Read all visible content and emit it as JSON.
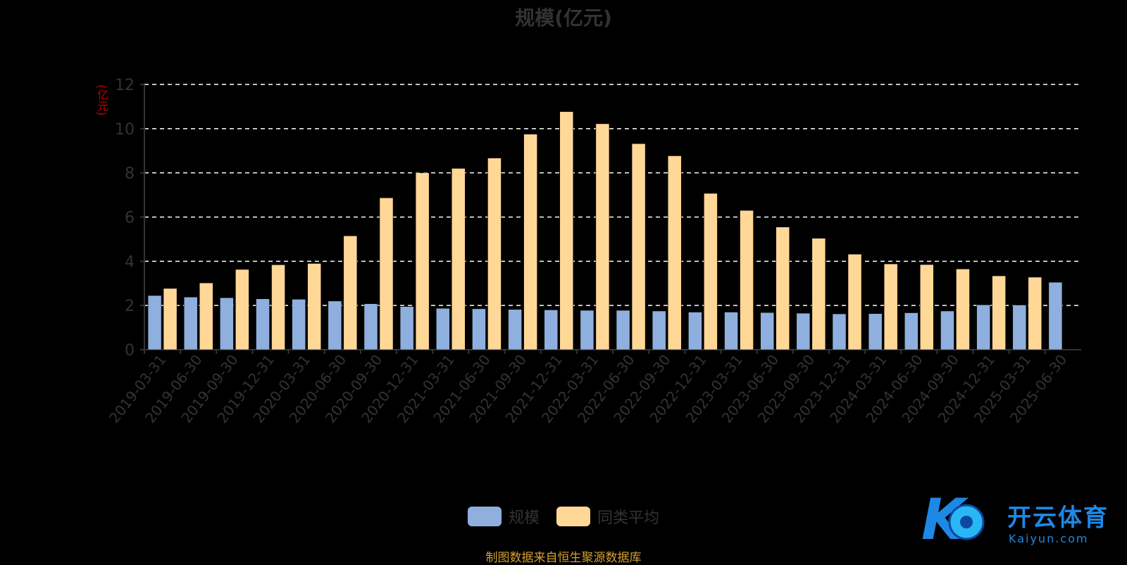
{
  "chart_data": {
    "type": "bar",
    "title": "规模(亿元)",
    "ylabel": "(亿元)",
    "ylim": [
      0,
      12
    ],
    "yticks": [
      0,
      2,
      4,
      6,
      8,
      10,
      12
    ],
    "grid": true,
    "legend_position": "bottom",
    "categories": [
      "2019-03-31",
      "2019-06-30",
      "2019-09-30",
      "2019-12-31",
      "2020-03-31",
      "2020-06-30",
      "2020-09-30",
      "2020-12-31",
      "2021-03-31",
      "2021-06-30",
      "2021-09-30",
      "2021-12-31",
      "2022-03-31",
      "2022-06-30",
      "2022-09-30",
      "2022-12-31",
      "2023-03-31",
      "2023-06-30",
      "2023-09-30",
      "2023-12-31",
      "2024-03-31",
      "2024-06-30",
      "2024-09-30",
      "2024-12-31",
      "2025-03-31",
      "2025-06-30"
    ],
    "series": [
      {
        "name": "规模",
        "color": "#8fb0de",
        "values": [
          2.45,
          2.38,
          2.35,
          2.3,
          2.28,
          2.2,
          2.08,
          1.95,
          1.87,
          1.85,
          1.82,
          1.8,
          1.78,
          1.78,
          1.75,
          1.7,
          1.7,
          1.68,
          1.65,
          1.62,
          1.63,
          1.67,
          1.75,
          2.03,
          2.02,
          3.05
        ]
      },
      {
        "name": "同类平均",
        "color": "#ffd898",
        "values": [
          2.77,
          3.02,
          3.63,
          3.84,
          3.9,
          5.15,
          6.87,
          8.0,
          8.2,
          8.67,
          9.75,
          10.77,
          10.22,
          9.32,
          8.77,
          7.07,
          6.3,
          5.55,
          5.04,
          4.32,
          3.88,
          3.85,
          3.65,
          3.34,
          3.28,
          null
        ]
      }
    ]
  },
  "footer": {
    "source": "制图数据来自恒生聚源数据库"
  },
  "watermark": {
    "brand": "开云体育",
    "site": "Kaiyun.com",
    "mark": "K"
  }
}
